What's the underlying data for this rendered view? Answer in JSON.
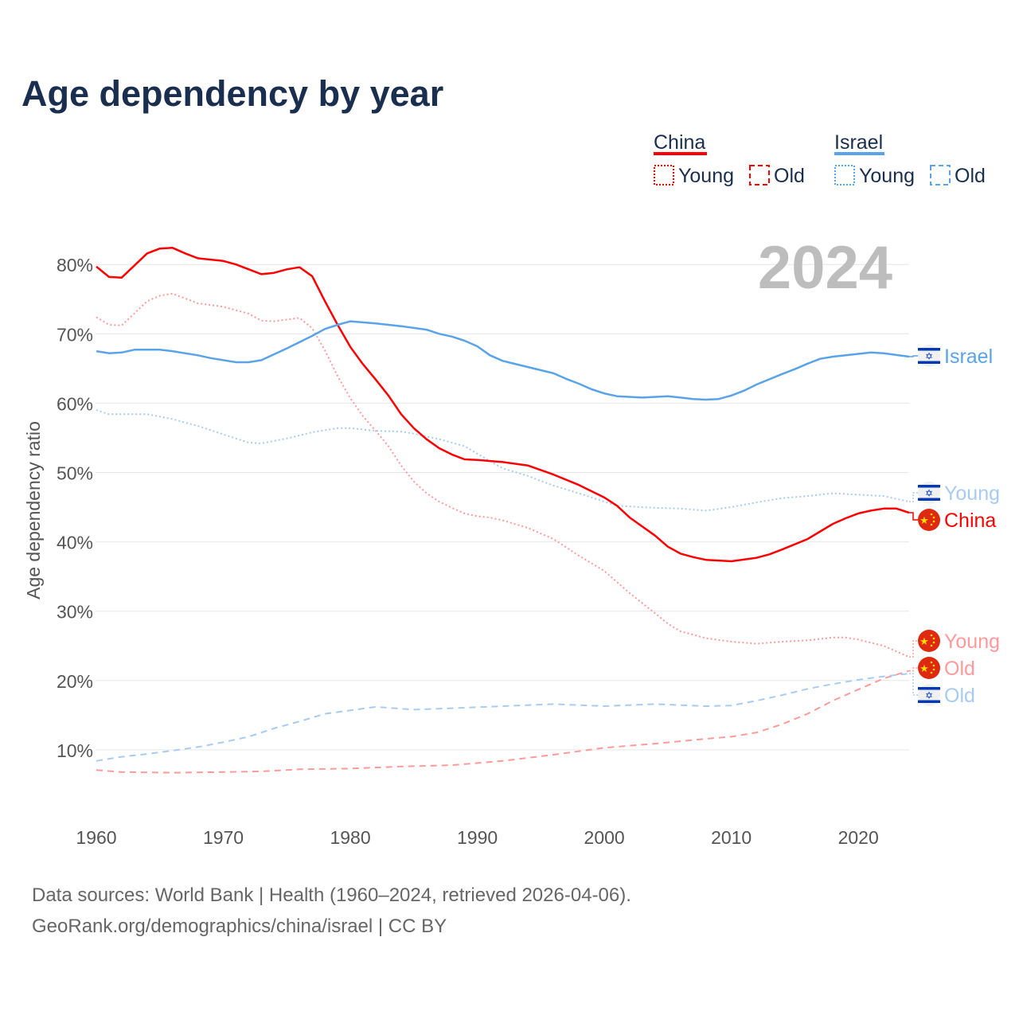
{
  "colors": {
    "china": "#ff0000",
    "china_light": "#ff9a9a",
    "israel": "#5aa3e8",
    "israel_light": "#a8cbf2",
    "title": "#1a2f4f",
    "muted": "#666666",
    "year": "#bdbdbd"
  },
  "legend": {
    "groups": [
      {
        "name": "China",
        "items": [
          "Young",
          "Old"
        ]
      },
      {
        "name": "Israel",
        "items": [
          "Young",
          "Old"
        ]
      }
    ]
  },
  "watermark_year": "2024",
  "footer": {
    "line1": "Data sources: World Bank | Health (1960–2024, retrieved 2026-04-06).",
    "line2": "GeoRank.org/demographics/china/israel | CC BY"
  },
  "chart_data": {
    "type": "line",
    "title": "Age dependency by year",
    "xlabel": "",
    "ylabel": "Age dependency ratio",
    "xlim": [
      1960,
      2024
    ],
    "ylim": [
      0,
      85
    ],
    "xticks": [
      "1960",
      "1970",
      "1980",
      "1990",
      "2000",
      "2010",
      "2020"
    ],
    "yticks": [
      "10%",
      "20%",
      "30%",
      "40%",
      "50%",
      "60%",
      "70%",
      "80%"
    ],
    "grid": true,
    "series": [
      {
        "name": "China",
        "label": "China",
        "country": "china",
        "style": "solid",
        "shade": "china",
        "x": [
          1960,
          1961,
          1962,
          1964,
          1965,
          1966,
          1967,
          1968,
          1970,
          1971,
          1972,
          1973,
          1974,
          1975,
          1976,
          1977,
          1978,
          1979,
          1980,
          1981,
          1982,
          1983,
          1984,
          1985,
          1986,
          1987,
          1988,
          1989,
          1990,
          1992,
          1994,
          1996,
          1998,
          2000,
          2001,
          2002,
          2004,
          2005,
          2006,
          2007,
          2008,
          2010,
          2012,
          2013,
          2014,
          2016,
          2018,
          2019,
          2020,
          2021,
          2022,
          2023,
          2024
        ],
        "y": [
          79.7,
          78.2,
          78.1,
          81.6,
          82.3,
          82.4,
          81.6,
          80.9,
          80.5,
          80.0,
          79.3,
          78.6,
          78.8,
          79.3,
          79.6,
          78.3,
          74.7,
          71.3,
          68.1,
          65.6,
          63.4,
          61.1,
          58.4,
          56.4,
          54.8,
          53.5,
          52.6,
          51.9,
          51.8,
          51.5,
          51.0,
          49.7,
          48.2,
          46.4,
          45.2,
          43.5,
          40.9,
          39.3,
          38.3,
          37.8,
          37.4,
          37.2,
          37.7,
          38.2,
          38.9,
          40.4,
          42.6,
          43.4,
          44.1,
          44.5,
          44.8,
          44.8,
          44.2
        ]
      },
      {
        "name": "China Young",
        "label": "Young",
        "country": "china",
        "style": "dotted",
        "shade": "china_light",
        "x": [
          1960,
          1961,
          1962,
          1964,
          1965,
          1966,
          1968,
          1970,
          1972,
          1973,
          1974,
          1976,
          1977,
          1978,
          1979,
          1980,
          1981,
          1982,
          1983,
          1984,
          1985,
          1986,
          1987,
          1988,
          1989,
          1990,
          1991,
          1992,
          1994,
          1996,
          1998,
          2000,
          2002,
          2004,
          2005,
          2006,
          2008,
          2010,
          2012,
          2014,
          2016,
          2018,
          2019,
          2020,
          2022,
          2024
        ],
        "y": [
          72.4,
          71.3,
          71.2,
          74.7,
          75.5,
          75.8,
          74.4,
          73.9,
          72.9,
          71.9,
          71.8,
          72.3,
          70.8,
          67.6,
          63.9,
          60.7,
          58.1,
          56.0,
          53.8,
          51.0,
          48.7,
          47.0,
          45.8,
          44.9,
          44.1,
          43.7,
          43.5,
          43.1,
          42.0,
          40.4,
          38.0,
          35.8,
          32.6,
          29.7,
          28.2,
          27.1,
          26.1,
          25.6,
          25.3,
          25.6,
          25.8,
          26.2,
          26.2,
          25.9,
          25.0,
          23.4
        ]
      },
      {
        "name": "China Old",
        "label": "Old",
        "country": "china",
        "style": "dashed",
        "shade": "china_light",
        "x": [
          1960,
          1962,
          1966,
          1970,
          1973,
          1976,
          1980,
          1984,
          1988,
          1992,
          1996,
          2000,
          2004,
          2008,
          2010,
          2012,
          2014,
          2016,
          2018,
          2020,
          2022,
          2024
        ],
        "y": [
          7.1,
          6.8,
          6.7,
          6.8,
          6.9,
          7.2,
          7.3,
          7.6,
          7.8,
          8.4,
          9.3,
          10.3,
          10.9,
          11.6,
          11.9,
          12.5,
          13.7,
          15.2,
          17.1,
          18.7,
          20.3,
          21.4
        ]
      },
      {
        "name": "Israel",
        "label": "Israel",
        "country": "israel",
        "style": "solid",
        "shade": "israel",
        "x": [
          1960,
          1961,
          1962,
          1963,
          1965,
          1966,
          1968,
          1969,
          1971,
          1972,
          1973,
          1975,
          1977,
          1978,
          1979,
          1980,
          1982,
          1984,
          1986,
          1987,
          1988,
          1989,
          1990,
          1991,
          1992,
          1994,
          1996,
          1997,
          1998,
          1999,
          2000,
          2001,
          2003,
          2005,
          2006,
          2007,
          2008,
          2009,
          2010,
          2011,
          2012,
          2014,
          2015,
          2016,
          2017,
          2018,
          2019,
          2021,
          2022,
          2024
        ],
        "y": [
          67.5,
          67.2,
          67.3,
          67.7,
          67.7,
          67.5,
          66.9,
          66.5,
          65.9,
          65.9,
          66.2,
          67.9,
          69.7,
          70.7,
          71.3,
          71.8,
          71.5,
          71.1,
          70.6,
          70.0,
          69.6,
          69.0,
          68.2,
          66.9,
          66.1,
          65.2,
          64.3,
          63.5,
          62.8,
          62.0,
          61.4,
          61.0,
          60.8,
          61.0,
          60.8,
          60.6,
          60.5,
          60.6,
          61.1,
          61.8,
          62.7,
          64.2,
          64.9,
          65.7,
          66.4,
          66.7,
          66.9,
          67.3,
          67.2,
          66.7
        ]
      },
      {
        "name": "Israel Young",
        "label": "Young",
        "country": "israel",
        "style": "dotted",
        "shade": "israel_light",
        "x": [
          1960,
          1961,
          1963,
          1964,
          1966,
          1968,
          1970,
          1972,
          1973,
          1975,
          1977,
          1979,
          1980,
          1982,
          1984,
          1985,
          1987,
          1989,
          1990,
          1992,
          1994,
          1996,
          1998,
          2000,
          2001,
          2004,
          2006,
          2008,
          2010,
          2012,
          2014,
          2016,
          2018,
          2020,
          2022,
          2024
        ],
        "y": [
          59.0,
          58.4,
          58.4,
          58.4,
          57.7,
          56.7,
          55.5,
          54.3,
          54.2,
          54.9,
          55.8,
          56.4,
          56.4,
          56.0,
          55.9,
          55.6,
          54.8,
          53.8,
          52.7,
          50.6,
          49.5,
          48.1,
          47.0,
          45.8,
          45.2,
          44.9,
          44.8,
          44.5,
          45.0,
          45.7,
          46.3,
          46.6,
          47.0,
          46.8,
          46.6,
          45.8
        ]
      },
      {
        "name": "Israel Old",
        "label": "Old",
        "country": "israel",
        "style": "dashed",
        "shade": "israel_light",
        "x": [
          1960,
          1962,
          1964,
          1966,
          1968,
          1970,
          1972,
          1974,
          1976,
          1978,
          1980,
          1982,
          1985,
          1988,
          1992,
          1996,
          2000,
          2004,
          2008,
          2010,
          2012,
          2014,
          2016,
          2018,
          2020,
          2022,
          2024
        ],
        "y": [
          8.4,
          9.0,
          9.4,
          9.9,
          10.4,
          11.1,
          11.9,
          13.1,
          14.1,
          15.2,
          15.7,
          16.2,
          15.8,
          16.0,
          16.3,
          16.6,
          16.3,
          16.6,
          16.3,
          16.4,
          17.1,
          17.9,
          18.8,
          19.5,
          20.1,
          20.6,
          21.0
        ]
      }
    ]
  }
}
